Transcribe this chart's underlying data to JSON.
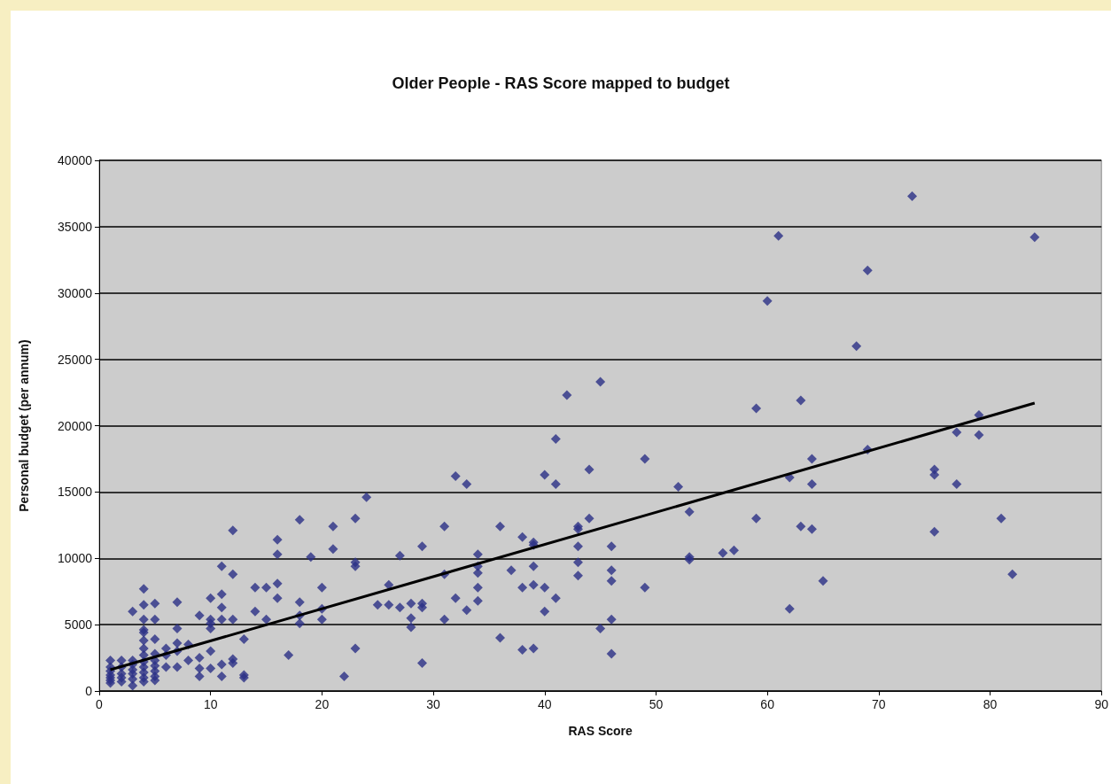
{
  "chart_data": {
    "type": "scatter",
    "title": "Older People - RAS Score mapped to budget",
    "xlabel": "RAS Score",
    "ylabel": "Personal budget (per annum)",
    "xlim": [
      0,
      90
    ],
    "xticks": [
      0,
      10,
      20,
      30,
      40,
      50,
      60,
      70,
      80,
      90
    ],
    "ylim": [
      0,
      40000
    ],
    "yticks": [
      0,
      5000,
      10000,
      15000,
      20000,
      25000,
      30000,
      35000,
      40000
    ],
    "grid": "y",
    "marker": "diamond",
    "series": [
      {
        "type": "scatter",
        "color": "#2b2f86",
        "x": [
          1,
          1,
          1,
          1,
          1,
          1,
          1,
          2,
          2,
          2,
          2,
          2,
          3,
          3,
          3,
          3,
          3,
          3,
          3,
          4,
          4,
          4,
          4,
          4,
          4,
          4,
          4,
          4,
          4,
          4,
          4,
          4,
          5,
          5,
          5,
          5,
          5,
          5,
          5,
          5,
          5,
          6,
          6,
          6,
          7,
          7,
          7,
          7,
          7,
          8,
          8,
          9,
          9,
          9,
          9,
          10,
          10,
          10,
          10,
          10,
          10,
          11,
          11,
          11,
          11,
          11,
          11,
          12,
          12,
          12,
          12,
          12,
          13,
          13,
          13,
          14,
          14,
          15,
          15,
          16,
          16,
          16,
          16,
          17,
          18,
          18,
          18,
          18,
          19,
          20,
          20,
          20,
          21,
          21,
          22,
          23,
          23,
          23,
          23,
          24,
          25,
          26,
          26,
          27,
          27,
          28,
          28,
          28,
          29,
          29,
          29,
          29,
          31,
          31,
          31,
          32,
          32,
          33,
          33,
          34,
          34,
          34,
          34,
          34,
          36,
          36,
          37,
          38,
          38,
          38,
          39,
          39,
          39,
          39,
          39,
          40,
          40,
          40,
          41,
          41,
          41,
          42,
          43,
          43,
          43,
          43,
          43,
          44,
          44,
          45,
          45,
          46,
          46,
          46,
          46,
          46,
          49,
          49,
          52,
          53,
          53,
          53,
          56,
          57,
          59,
          59,
          60,
          61,
          62,
          62,
          63,
          63,
          64,
          64,
          64,
          65,
          68,
          69,
          69,
          73,
          75,
          75,
          75,
          77,
          77,
          79,
          79,
          81,
          82,
          84
        ],
        "values": [
          2300,
          1800,
          1500,
          1200,
          1000,
          800,
          600,
          2300,
          1800,
          1300,
          1000,
          700,
          6000,
          2300,
          2000,
          1600,
          1300,
          900,
          400,
          7700,
          6500,
          5400,
          4600,
          4400,
          3800,
          3200,
          2700,
          2200,
          1800,
          1400,
          1000,
          700,
          6600,
          5400,
          3900,
          2800,
          2300,
          1900,
          1500,
          1100,
          800,
          3200,
          2700,
          1800,
          6700,
          4700,
          3600,
          3000,
          1800,
          3500,
          2300,
          5700,
          2500,
          1700,
          1100,
          7000,
          5400,
          5100,
          4700,
          3000,
          1700,
          9400,
          7300,
          6300,
          5400,
          2000,
          1100,
          12100,
          8800,
          5400,
          2400,
          2100,
          3900,
          1200,
          1000,
          7800,
          6000,
          7800,
          5400,
          11400,
          10300,
          8100,
          7000,
          2700,
          12900,
          6700,
          5700,
          5100,
          10100,
          7800,
          6200,
          5400,
          12400,
          10700,
          1100,
          13000,
          9700,
          9400,
          3200,
          14600,
          6500,
          8000,
          6500,
          10200,
          6300,
          6600,
          5500,
          4800,
          10900,
          6600,
          6300,
          2100,
          12400,
          8800,
          5400,
          16200,
          7000,
          15600,
          6100,
          10300,
          9400,
          8900,
          7800,
          6800,
          12400,
          4000,
          9100,
          11600,
          7800,
          3100,
          11200,
          11000,
          9400,
          8000,
          3200,
          16300,
          7800,
          6000,
          19000,
          15600,
          7000,
          22300,
          12400,
          12200,
          10900,
          9700,
          8700,
          16700,
          13000,
          23300,
          4700,
          10900,
          9100,
          8300,
          5400,
          2800,
          17500,
          7800,
          15400,
          13500,
          10100,
          9900,
          10400,
          10600,
          21300,
          13000,
          29400,
          34300,
          16100,
          6200,
          21900,
          12400,
          17500,
          15600,
          12200,
          8300,
          26000,
          31700,
          18200,
          37300,
          16700,
          16300,
          12000,
          19500,
          15600,
          20800,
          19300,
          13000,
          8800,
          34200
        ]
      },
      {
        "type": "line",
        "color": "#000000",
        "marker": "none",
        "x": [
          1,
          84
        ],
        "values": [
          1600,
          21700
        ]
      }
    ]
  }
}
